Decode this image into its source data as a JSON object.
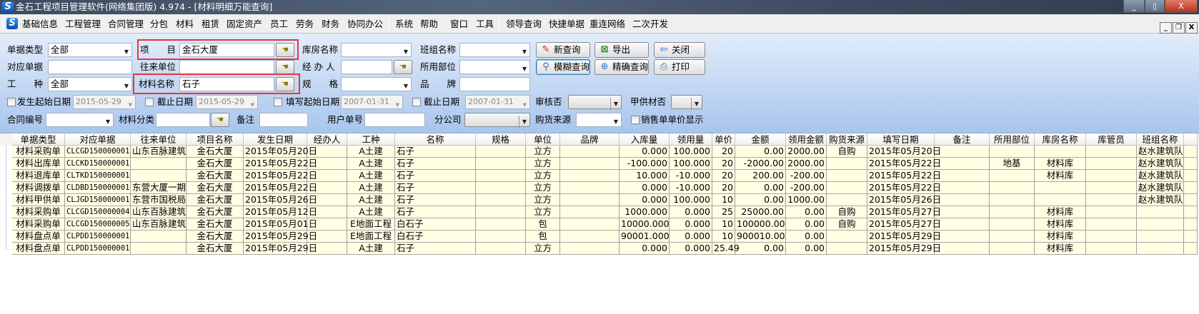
{
  "window": {
    "title": "金石工程项目管理软件(网络集团版) 4.974 - [材料明细万能查询]",
    "minimize": "_",
    "restore": "▯",
    "close": "X"
  },
  "menu": {
    "items": [
      "基础信息",
      "工程管理",
      "合同管理",
      "分包",
      "材料",
      "租赁",
      "固定资产",
      "员工",
      "劳务",
      "财务",
      "协同办公",
      "系统",
      "帮助",
      "窗口",
      "工具",
      "领导查询",
      "快捷单据",
      "重连网络",
      "二次开发"
    ],
    "mdi": {
      "minimize": "_",
      "restore": "❐",
      "close": "X"
    }
  },
  "form": {
    "doc_type": {
      "label": "单据类型",
      "value": "全部"
    },
    "project": {
      "label": "项　　目",
      "value": "金石大厦"
    },
    "warehouse": {
      "label": "库房名称",
      "value": ""
    },
    "team": {
      "label": "班组名称",
      "value": ""
    },
    "ref_doc": {
      "label": "对应单据",
      "value": ""
    },
    "partner": {
      "label": "往来单位",
      "value": ""
    },
    "handler": {
      "label": "经 办 人",
      "value": ""
    },
    "dept": {
      "label": "所用部位",
      "value": ""
    },
    "trade": {
      "label": "工　　种",
      "value": "全部"
    },
    "material": {
      "label": "材料名称",
      "value": "石子"
    },
    "spec": {
      "label": "规　　格",
      "value": ""
    },
    "brand": {
      "label": "品　　牌",
      "value": ""
    },
    "occur_start": {
      "label": "发生起始日期",
      "value": "2015-05-29",
      "checked": false
    },
    "occur_end": {
      "label": "截止日期",
      "value": "2015-05-29",
      "checked": false
    },
    "fill_start": {
      "label": "填写起始日期",
      "value": "2007-01-31",
      "checked": false
    },
    "fill_end": {
      "label": "截止日期",
      "value": "2007-01-31",
      "checked": false
    },
    "audited": {
      "label": "审核否",
      "value": ""
    },
    "owner_supplied": {
      "label": "甲供材否",
      "value": ""
    },
    "contract_no": {
      "label": "合同编号",
      "value": ""
    },
    "category": {
      "label": "材料分类",
      "value": ""
    },
    "remark": {
      "label": "备注",
      "value": ""
    },
    "user_doc_no": {
      "label": "用户单号",
      "value": ""
    },
    "branch": {
      "label": "分公司",
      "value": ""
    },
    "source": {
      "label": "购货来源",
      "value": ""
    },
    "show_sale_price": {
      "label": "销售单单价显示",
      "checked": false
    },
    "buttons": {
      "new_query": "新查询",
      "export": "导出",
      "close": "关闭",
      "fuzzy_query": "模糊查询",
      "exact_query": "精确查询",
      "print": "打印"
    }
  },
  "grid": {
    "columns": [
      "单据类型",
      "对应单据",
      "往来单位",
      "项目名称",
      "发生日期",
      "经办人",
      "工种",
      "名称",
      "规格",
      "单位",
      "品牌",
      "入库量",
      "领用量",
      "单价",
      "金额",
      "领用金额",
      "购货来源",
      "填写日期",
      "备注",
      "所用部位",
      "库房名称",
      "库管员",
      "班组名称",
      ""
    ],
    "rows": [
      [
        "材料采购单",
        "CLCGD150000001",
        "山东百脉建筑",
        "金石大厦",
        "2015年05月20日",
        "",
        "A土建",
        "石子",
        "",
        "立方",
        "",
        "0.000",
        "100.000",
        "20",
        "0.00",
        "2000.00",
        "自购",
        "2015年05月20日",
        "",
        "",
        "",
        "",
        "赵水建筑队",
        ""
      ],
      [
        "材料出库单",
        "CLCKD150000001",
        "",
        "金石大厦",
        "2015年05月22日",
        "",
        "A土建",
        "石子",
        "",
        "立方",
        "",
        "-100.000",
        "100.000",
        "20",
        "-2000.00",
        "2000.00",
        "",
        "2015年05月22日",
        "",
        "地基",
        "材料库",
        "",
        "赵水建筑队",
        ""
      ],
      [
        "材料退库单",
        "CLTKD150000001",
        "",
        "金石大厦",
        "2015年05月22日",
        "",
        "A土建",
        "石子",
        "",
        "立方",
        "",
        "10.000",
        "-10.000",
        "20",
        "200.00",
        "-200.00",
        "",
        "2015年05月22日",
        "",
        "",
        "材料库",
        "",
        "赵水建筑队",
        ""
      ],
      [
        "材料调拨单",
        "CLDBD150000001",
        "东营大厦一期",
        "金石大厦",
        "2015年05月22日",
        "",
        "A土建",
        "石子",
        "",
        "立方",
        "",
        "0.000",
        "-10.000",
        "20",
        "0.00",
        "-200.00",
        "",
        "2015年05月22日",
        "",
        "",
        "",
        "",
        "赵水建筑队",
        ""
      ],
      [
        "材料甲供单",
        "CLJGD150000001",
        "东营市国税局",
        "金石大厦",
        "2015年05月26日",
        "",
        "A土建",
        "石子",
        "",
        "立方",
        "",
        "0.000",
        "100.000",
        "10",
        "0.00",
        "1000.00",
        "",
        "2015年05月26日",
        "",
        "",
        "",
        "",
        "赵水建筑队",
        ""
      ],
      [
        "材料采购单",
        "CLCGD150000004",
        "山东百脉建筑",
        "金石大厦",
        "2015年05月12日",
        "",
        "A土建",
        "石子",
        "",
        "立方",
        "",
        "1000.000",
        "0.000",
        "25",
        "25000.00",
        "0.00",
        "自购",
        "2015年05月27日",
        "",
        "",
        "材料库",
        "",
        "",
        ""
      ],
      [
        "材料采购单",
        "CLCGD150000005",
        "山东百脉建筑",
        "金石大厦",
        "2015年05月01日",
        "",
        "E地面工程",
        "白石子",
        "",
        "包",
        "",
        "10000.000",
        "0.000",
        "10",
        "100000.00",
        "0.00",
        "自购",
        "2015年05月27日",
        "",
        "",
        "材料库",
        "",
        "",
        ""
      ],
      [
        "材料盘点单",
        "CLPDD150000001",
        "",
        "金石大厦",
        "2015年05月29日",
        "",
        "E地面工程",
        "白石子",
        "",
        "包",
        "",
        "90001.000",
        "0.000",
        "10",
        "900010.00",
        "0.00",
        "",
        "2015年05月29日",
        "",
        "",
        "材料库",
        "",
        "",
        ""
      ],
      [
        "材料盘点单",
        "CLPDD150000001",
        "",
        "金石大厦",
        "2015年05月29日",
        "",
        "A土建",
        "石子",
        "",
        "立方",
        "",
        "0.000",
        "0.000",
        "25.49",
        "0.00",
        "0.00",
        "",
        "2015年05月29日",
        "",
        "",
        "材料库",
        "",
        "",
        ""
      ]
    ]
  },
  "colors": {
    "highlight_box": "#e8343f",
    "row_bg": "#ffffe3",
    "form_top": "#e2edfb",
    "form_bottom": "#a9c5ec"
  }
}
